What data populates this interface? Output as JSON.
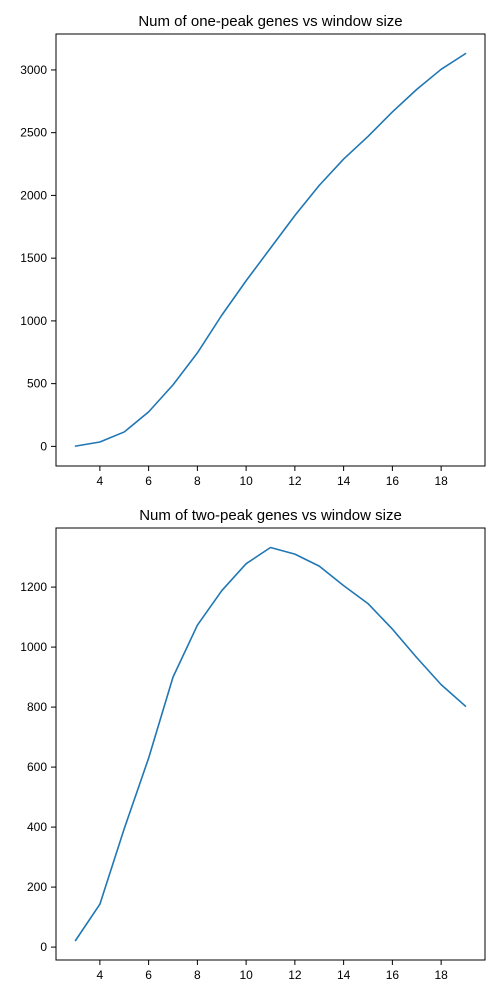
{
  "colors": {
    "series": "#1f77b4"
  },
  "chart_data": [
    {
      "type": "line",
      "title": "Num of one-peak genes vs window size",
      "xlabel": "",
      "ylabel": "",
      "x": [
        3,
        4,
        5,
        6,
        7,
        8,
        9,
        10,
        11,
        12,
        13,
        14,
        15,
        16,
        17,
        18,
        19
      ],
      "series": [
        {
          "values": [
            2,
            35,
            115,
            275,
            490,
            745,
            1045,
            1320,
            1580,
            1840,
            2080,
            2290,
            2470,
            2665,
            2845,
            3005,
            3130
          ]
        }
      ],
      "xlim": [
        2.2,
        19.8
      ],
      "ylim": [
        -156.4,
        3286.4
      ],
      "xticks": [
        4,
        6,
        8,
        10,
        12,
        14,
        16,
        18
      ],
      "xtick_labels": [
        "4",
        "6",
        "8",
        "10",
        "12",
        "14",
        "16",
        "18"
      ],
      "yticks": [
        0,
        500,
        1000,
        1500,
        2000,
        2500,
        3000
      ],
      "ytick_labels": [
        "0",
        "500",
        "1000",
        "1500",
        "2000",
        "2500",
        "3000"
      ],
      "grid": false,
      "legend": null
    },
    {
      "type": "line",
      "title": "Num of two-peak genes vs window size",
      "xlabel": "",
      "ylabel": "",
      "x": [
        3,
        4,
        5,
        6,
        7,
        8,
        9,
        10,
        11,
        12,
        13,
        14,
        15,
        16,
        17,
        18,
        19
      ],
      "series": [
        {
          "values": [
            22,
            143,
            395,
            630,
            900,
            1073,
            1188,
            1278,
            1332,
            1310,
            1270,
            1205,
            1145,
            1060,
            965,
            875,
            803
          ]
        }
      ],
      "xlim": [
        2.2,
        19.8
      ],
      "ylim": [
        -43,
        1397
      ],
      "xticks": [
        4,
        6,
        8,
        10,
        12,
        14,
        16,
        18
      ],
      "xtick_labels": [
        "4",
        "6",
        "8",
        "10",
        "12",
        "14",
        "16",
        "18"
      ],
      "yticks": [
        0,
        200,
        400,
        600,
        800,
        1000,
        1200
      ],
      "ytick_labels": [
        "0",
        "200",
        "400",
        "600",
        "800",
        "1000",
        "1200"
      ],
      "grid": false,
      "legend": null
    }
  ]
}
